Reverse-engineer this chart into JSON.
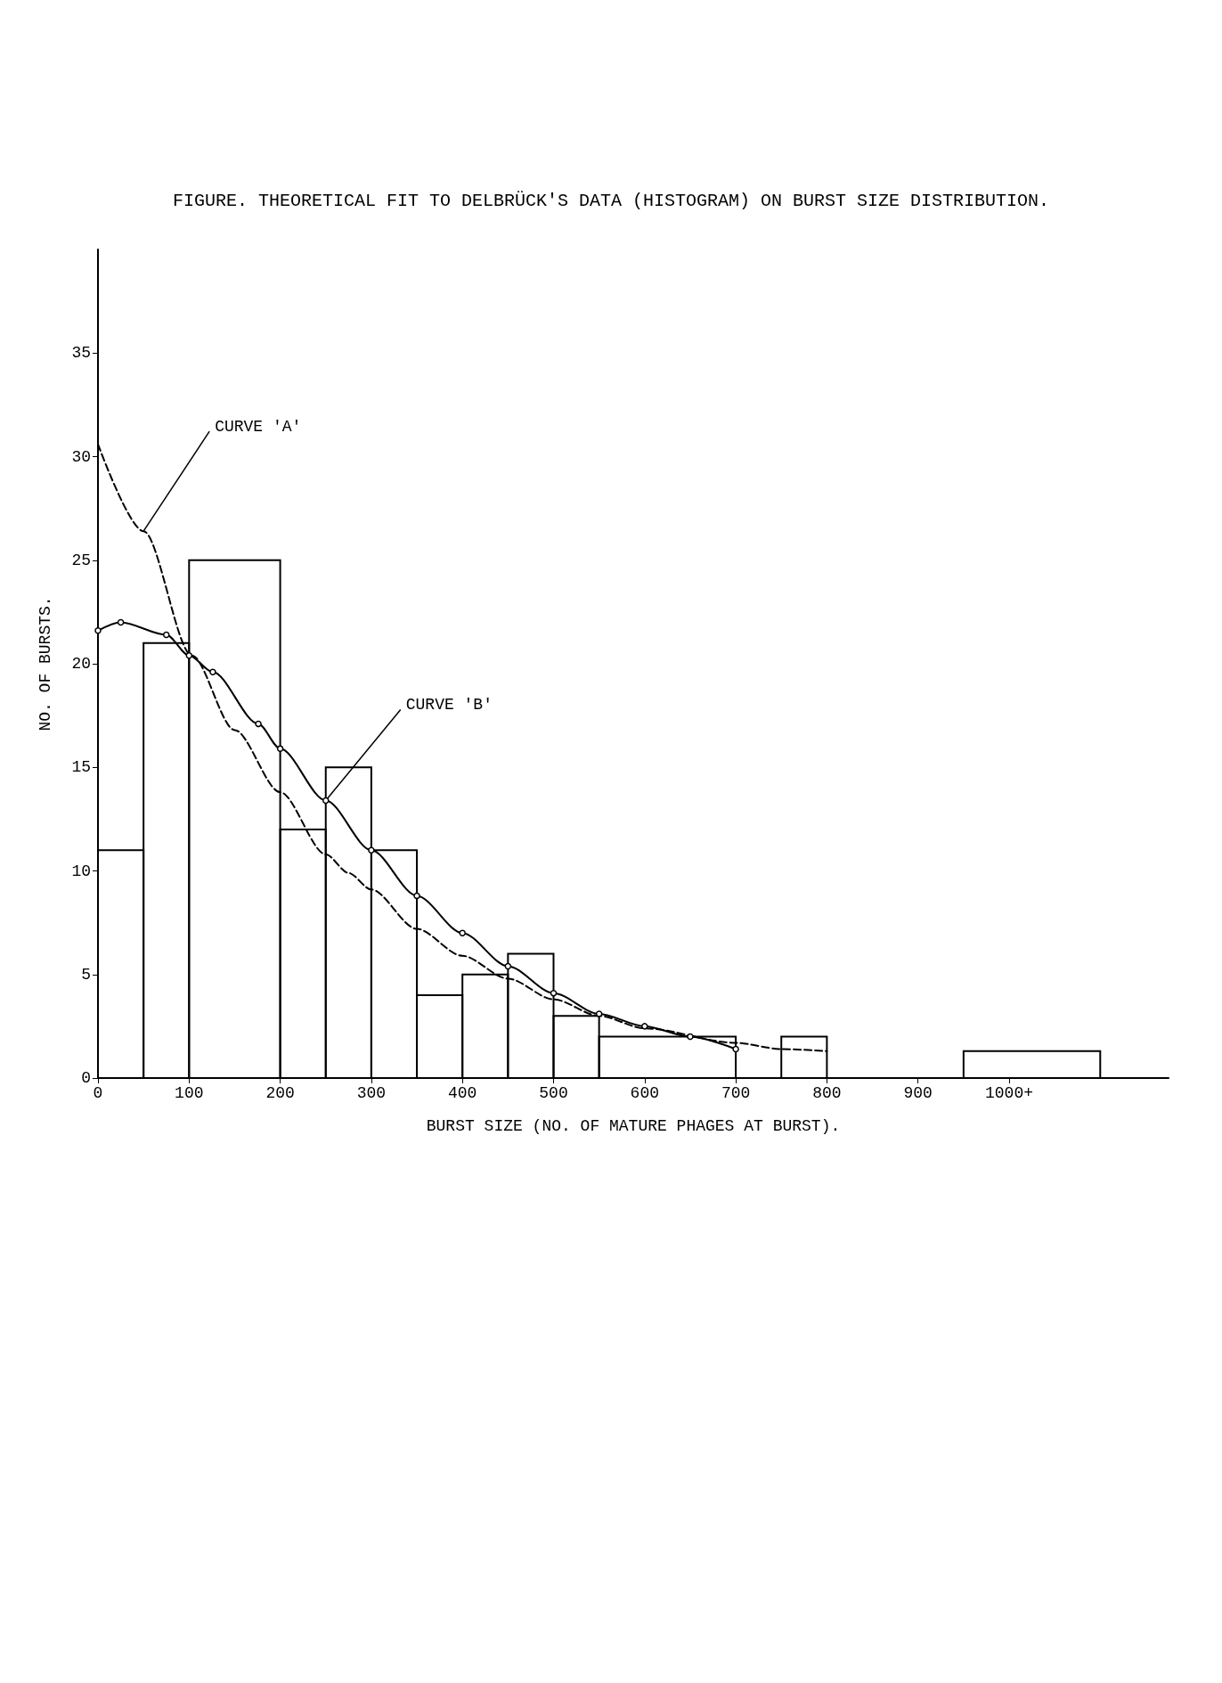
{
  "chart_data": {
    "type": "histogram",
    "title": "FIGURE. THEORETICAL FIT TO DELBRÜCK'S DATA (HISTOGRAM) ON BURST SIZE DISTRIBUTION.",
    "xlabel": "BURST SIZE (NO. OF MATURE PHAGES AT BURST).",
    "ylabel": "NO. OF BURSTS.",
    "bins": [
      0,
      50,
      100,
      200,
      250,
      300,
      350,
      400,
      450,
      500,
      550,
      700,
      750,
      800,
      950,
      1100
    ],
    "values": [
      11,
      21,
      25,
      12,
      15,
      11,
      4,
      5,
      6,
      3,
      2,
      0,
      2,
      0,
      1.3
    ],
    "color": "#000000",
    "series": [
      {
        "type": "line",
        "x": [
          0,
          50,
          103,
          150,
          200,
          250,
          275,
          300,
          350,
          400,
          450,
          500,
          550,
          600,
          700,
          750,
          800
        ],
        "values": [
          30.6,
          26.4,
          20.4,
          16.8,
          13.8,
          10.8,
          9.9,
          9.1,
          7.2,
          5.9,
          4.8,
          3.8,
          3.0,
          2.4,
          1.7,
          1.4,
          1.3
        ],
        "color": "#000000",
        "line_style": "dashed",
        "marker": "none"
      },
      {
        "type": "line",
        "x": [
          0,
          25,
          75,
          100,
          126,
          176,
          200,
          250,
          300,
          350,
          400,
          450,
          500,
          550,
          600,
          650,
          700
        ],
        "values": [
          21.6,
          22.0,
          21.4,
          20.4,
          19.6,
          17.1,
          15.9,
          13.4,
          11.0,
          8.8,
          7.0,
          5.4,
          4.1,
          3.1,
          2.5,
          2.0,
          1.4
        ],
        "color": "#000000",
        "line_style": "solid",
        "marker": "circle"
      }
    ],
    "annotations": [
      {
        "text": "CURVE 'A'",
        "x": 50,
        "y": 26.4
      },
      {
        "text": "CURVE 'B'",
        "x": 250,
        "y": 13.4
      }
    ],
    "xlim": [
      0,
      1175
    ],
    "xticks": [
      0,
      100,
      200,
      300,
      400,
      500,
      600,
      700,
      800,
      900,
      {
        "value": 1000,
        "label": "1000+"
      }
    ],
    "ylim": [
      0,
      40
    ],
    "yticks": [
      0,
      5,
      10,
      15,
      20,
      25,
      30,
      35
    ],
    "grid": false
  }
}
